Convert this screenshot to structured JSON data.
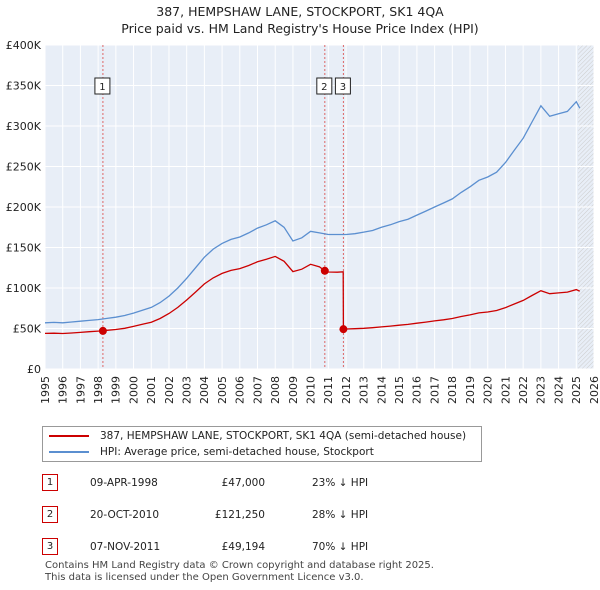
{
  "title_line1": "387, HEMPSHAW LANE, STOCKPORT, SK1 4QA",
  "title_line2": "Price paid vs. HM Land Registry's House Price Index (HPI)",
  "legend": {
    "red_label": "387, HEMPSHAW LANE, STOCKPORT, SK1 4QA (semi-detached house)",
    "blue_label": "HPI: Average price, semi-detached house, Stockport"
  },
  "sales": [
    {
      "num": "1",
      "date": "09-APR-1998",
      "price": "£47,000",
      "hpi": "23% ↓ HPI"
    },
    {
      "num": "2",
      "date": "20-OCT-2010",
      "price": "£121,250",
      "hpi": "28% ↓ HPI"
    },
    {
      "num": "3",
      "date": "07-NOV-2011",
      "price": "£49,194",
      "hpi": "70% ↓ HPI"
    }
  ],
  "footer_line1": "Contains HM Land Registry data © Crown copyright and database right 2025.",
  "footer_line2": "This data is licensed under the Open Government Licence v3.0.",
  "colors": {
    "red": "#cc0000",
    "blue": "#5b8fd0",
    "grid": "#ffffff",
    "plot_bg": "#e8eef7",
    "future_hatch": "#cccccc"
  },
  "chart_data": {
    "type": "line",
    "title": "387, HEMPSHAW LANE, STOCKPORT, SK1 4QA — Price paid vs. HM Land Registry's House Price Index (HPI)",
    "xlabel": "",
    "ylabel": "",
    "xlim": [
      1995,
      2026
    ],
    "ylim": [
      0,
      400000
    ],
    "x_ticks": [
      "1995",
      "1996",
      "1997",
      "1998",
      "1999",
      "2000",
      "2001",
      "2002",
      "2003",
      "2004",
      "2005",
      "2006",
      "2007",
      "2008",
      "2009",
      "2010",
      "2011",
      "2012",
      "2013",
      "2014",
      "2015",
      "2016",
      "2017",
      "2018",
      "2019",
      "2020",
      "2021",
      "2022",
      "2023",
      "2024",
      "2025",
      "2026"
    ],
    "y_ticks": [
      {
        "value": 0,
        "label": "£0"
      },
      {
        "value": 50000,
        "label": "£50K"
      },
      {
        "value": 100000,
        "label": "£100K"
      },
      {
        "value": 150000,
        "label": "£150K"
      },
      {
        "value": 200000,
        "label": "£200K"
      },
      {
        "value": 250000,
        "label": "£250K"
      },
      {
        "value": 300000,
        "label": "£300K"
      },
      {
        "value": 350000,
        "label": "£350K"
      },
      {
        "value": 400000,
        "label": "£400K"
      }
    ],
    "future_from": 2025.1,
    "series": [
      {
        "name": "HPI: Average price, semi-detached house, Stockport",
        "color": "#5b8fd0",
        "x": [
          1995.0,
          1995.5,
          1996.0,
          1996.5,
          1997.0,
          1997.5,
          1998.0,
          1998.5,
          1999.0,
          1999.5,
          2000.0,
          2000.5,
          2001.0,
          2001.5,
          2002.0,
          2002.5,
          2003.0,
          2003.5,
          2004.0,
          2004.5,
          2005.0,
          2005.5,
          2006.0,
          2006.5,
          2007.0,
          2007.5,
          2008.0,
          2008.5,
          2009.0,
          2009.5,
          2010.0,
          2010.5,
          2011.0,
          2011.5,
          2012.0,
          2012.5,
          2013.0,
          2013.5,
          2014.0,
          2014.5,
          2015.0,
          2015.5,
          2016.0,
          2016.5,
          2017.0,
          2017.5,
          2018.0,
          2018.5,
          2019.0,
          2019.5,
          2020.0,
          2020.5,
          2021.0,
          2021.5,
          2022.0,
          2022.5,
          2023.0,
          2023.5,
          2024.0,
          2024.5,
          2025.0,
          2025.2
        ],
        "values": [
          57000,
          57500,
          57000,
          58000,
          59000,
          60000,
          61000,
          62500,
          64000,
          66000,
          69000,
          72500,
          76000,
          82000,
          90000,
          100000,
          112000,
          125000,
          138000,
          148000,
          155000,
          160000,
          163000,
          168000,
          174000,
          178000,
          183000,
          175000,
          158000,
          162000,
          170000,
          168000,
          166000,
          166000,
          166000,
          167000,
          169000,
          171000,
          175000,
          178000,
          182000,
          185000,
          190000,
          195000,
          200000,
          205000,
          210000,
          218000,
          225000,
          233000,
          237000,
          243000,
          255000,
          270000,
          285000,
          305000,
          325000,
          312000,
          315000,
          318000,
          330000,
          322000
        ]
      },
      {
        "name": "387, HEMPSHAW LANE, STOCKPORT, SK1 4QA (semi-detached house)",
        "color": "#cc0000",
        "x": [
          1995.0,
          1995.5,
          1996.0,
          1996.5,
          1997.0,
          1997.5,
          1998.0,
          1998.27,
          1998.5,
          1999.0,
          1999.5,
          2000.0,
          2000.5,
          2001.0,
          2001.5,
          2002.0,
          2002.5,
          2003.0,
          2003.5,
          2004.0,
          2004.5,
          2005.0,
          2005.5,
          2006.0,
          2006.5,
          2007.0,
          2007.5,
          2008.0,
          2008.5,
          2009.0,
          2009.5,
          2010.0,
          2010.5,
          2010.8,
          2011.0,
          2011.5,
          2011.84,
          2011.85,
          2012.0,
          2012.5,
          2013.0,
          2013.5,
          2014.0,
          2014.5,
          2015.0,
          2015.5,
          2016.0,
          2016.5,
          2017.0,
          2017.5,
          2018.0,
          2018.5,
          2019.0,
          2019.5,
          2020.0,
          2020.5,
          2021.0,
          2021.5,
          2022.0,
          2022.5,
          2023.0,
          2023.5,
          2024.0,
          2024.5,
          2025.0,
          2025.2
        ],
        "values": [
          44000,
          44200,
          43800,
          44500,
          45200,
          46000,
          46800,
          47000,
          47800,
          48800,
          50300,
          52600,
          55200,
          57800,
          62300,
          68500,
          76000,
          85200,
          95000,
          105000,
          112500,
          118000,
          121700,
          124000,
          127800,
          132300,
          135400,
          139000,
          133000,
          120200,
          123200,
          129300,
          126100,
          121250,
          119800,
          119500,
          120000,
          49194,
          49400,
          49700,
          50300,
          51000,
          52000,
          53000,
          54100,
          55100,
          56500,
          57900,
          59400,
          60800,
          62400,
          64800,
          66800,
          69200,
          70400,
          72200,
          75800,
          80300,
          84700,
          90700,
          96700,
          93000,
          94000,
          95000,
          98000,
          96000
        ]
      }
    ],
    "markers": [
      {
        "label": "1",
        "x": 1998.27,
        "value": 47000
      },
      {
        "label": "2",
        "x": 2010.8,
        "value": 121250
      },
      {
        "label": "3",
        "x": 2011.85,
        "value": 49194
      }
    ]
  }
}
